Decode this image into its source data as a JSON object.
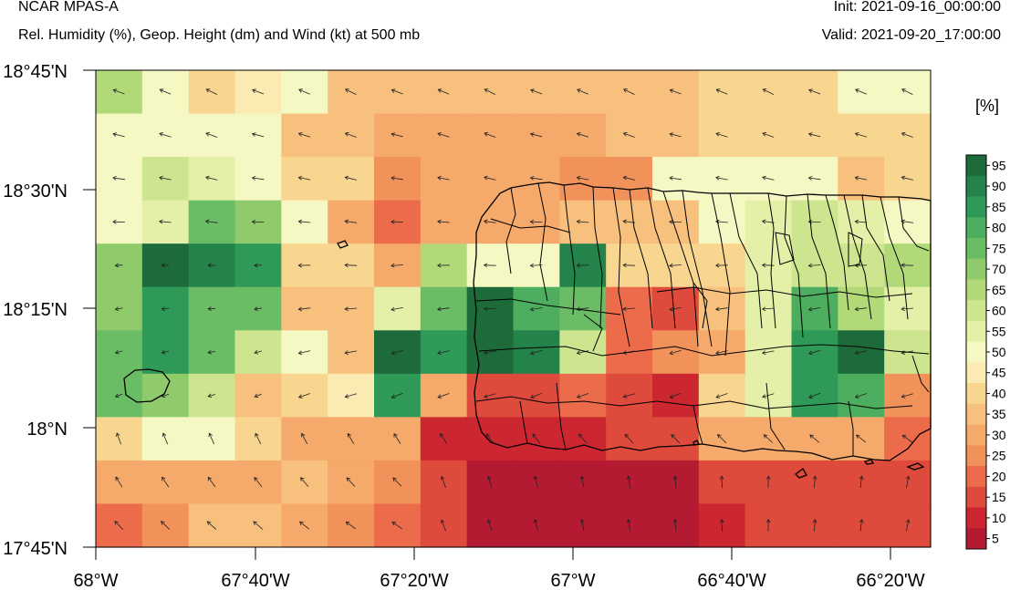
{
  "header": {
    "model": "NCAR MPAS-A",
    "subtitle": "Rel. Humidity (%), Geop. Height (dm) and Wind (kt) at 500 mb",
    "init": "Init: 2021-09-16_00:00:00",
    "valid": "Valid: 2021-09-20_17:00:00"
  },
  "axes": {
    "lat_labels": [
      "18°45'N",
      "18°30'N",
      "18°15'N",
      "18°N",
      "17°45'N"
    ],
    "lon_labels": [
      "68°W",
      "67°40'W",
      "67°20'W",
      "67°W",
      "66°40'W",
      "66°20'W"
    ]
  },
  "colorbar": {
    "unit": "[%]",
    "labels": [
      "95",
      "90",
      "85",
      "80",
      "75",
      "70",
      "65",
      "60",
      "55",
      "50",
      "45",
      "40",
      "35",
      "30",
      "25",
      "20",
      "15",
      "10",
      "5"
    ],
    "colors": [
      "#1d6b3a",
      "#24834a",
      "#2f9a57",
      "#4cae5e",
      "#6abd64",
      "#8fcb6b",
      "#b1d978",
      "#cde58e",
      "#e4f0a8",
      "#f5f8c2",
      "#fbeab1",
      "#f9d690",
      "#f7c07d",
      "#f5a96b",
      "#f2925b",
      "#eb6b4a",
      "#de4a3b",
      "#cc2730",
      "#b51a33"
    ]
  },
  "map": {
    "colors_key": [
      "#b51a33",
      "#cc2730",
      "#de4a3b",
      "#eb6b4a",
      "#f2925b",
      "#f5a96b",
      "#f7c07d",
      "#f9d690",
      "#fbeab1",
      "#f5f8c2",
      "#e4f0a8",
      "#cde58e",
      "#b1d978",
      "#8fcb6b",
      "#6abd64",
      "#4cae5e",
      "#2f9a57",
      "#24834a",
      "#1d6b3a"
    ],
    "grid_levels": [
      [
        12,
        9,
        7,
        8,
        9,
        6,
        6,
        6,
        6,
        6,
        6,
        6,
        6,
        7,
        7,
        7,
        9,
        9
      ],
      [
        9,
        9,
        9,
        9,
        6,
        6,
        5,
        5,
        5,
        5,
        5,
        6,
        6,
        7,
        7,
        7,
        7,
        7
      ],
      [
        9,
        11,
        10,
        9,
        7,
        7,
        4,
        5,
        5,
        5,
        4,
        4,
        9,
        9,
        9,
        9,
        6,
        7
      ],
      [
        9,
        10,
        14,
        13,
        9,
        5,
        3,
        5,
        5,
        5,
        6,
        6,
        6,
        9,
        10,
        11,
        10,
        9
      ],
      [
        13,
        18,
        17,
        16,
        7,
        7,
        5,
        12,
        9,
        9,
        17,
        7,
        7,
        7,
        10,
        11,
        11,
        12
      ],
      [
        13,
        16,
        14,
        14,
        6,
        6,
        10,
        14,
        18,
        15,
        14,
        3,
        2,
        6,
        10,
        15,
        12,
        10
      ],
      [
        14,
        16,
        14,
        11,
        9,
        6,
        18,
        16,
        18,
        17,
        11,
        3,
        4,
        5,
        10,
        16,
        18,
        11
      ],
      [
        14,
        13,
        11,
        6,
        7,
        8,
        16,
        5,
        2,
        2,
        3,
        2,
        1,
        7,
        10,
        16,
        15,
        4
      ],
      [
        7,
        9,
        9,
        7,
        5,
        5,
        5,
        1,
        1,
        1,
        1,
        2,
        2,
        5,
        5,
        5,
        5,
        3
      ],
      [
        5,
        5,
        5,
        5,
        6,
        5,
        4,
        2,
        0,
        0,
        0,
        0,
        0,
        2,
        2,
        2,
        2,
        2
      ],
      [
        3,
        4,
        6,
        6,
        5,
        4,
        3,
        2,
        0,
        0,
        0,
        0,
        0,
        1,
        2,
        2,
        2,
        2
      ]
    ]
  }
}
